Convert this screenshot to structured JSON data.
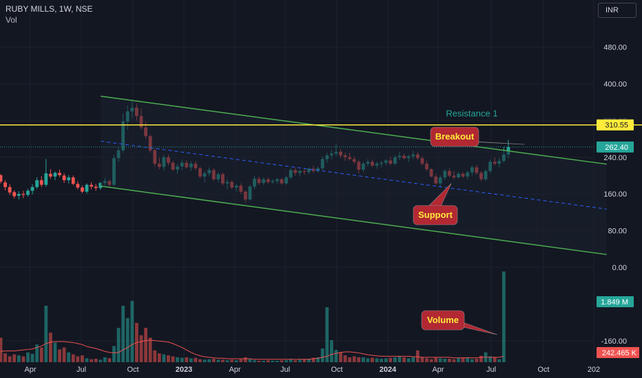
{
  "header": {
    "title": "RUBY MILLS, 1W, NSE",
    "indicator": "Vol"
  },
  "currency": "INR",
  "colors": {
    "background": "#131722",
    "up": "#26a69a",
    "down": "#ef5350",
    "channel": "#4caf50",
    "midline": "#2962ff",
    "resistance": "#ffeb3b",
    "resistance_text": "#26a69a",
    "callout": "#b22833",
    "callout_text": "#ffeb3b",
    "axis_text": "#d1d4dc",
    "vol_ma": "#ef5350"
  },
  "chart_data": [
    {
      "type": "candlestick",
      "title": "RUBY MILLS, 1W, NSE",
      "price_axis": {
        "ticks": [
          "480.00",
          "400.00",
          "320.00",
          "240.00",
          "160.00",
          "80.00",
          "0.00",
          "-160.00"
        ],
        "range": [
          -240,
          560
        ]
      },
      "time_axis": {
        "ticks": [
          "Apr",
          "Jul",
          "Oct",
          "2023",
          "Apr",
          "Jul",
          "Oct",
          "2024",
          "Apr",
          "Jul",
          "Oct",
          "202"
        ]
      },
      "last_price": {
        "label": "262.40",
        "value": 262.4
      },
      "resistance": {
        "label": "Resistance 1",
        "value": 310.55,
        "price_label": "310.55"
      },
      "channel": {
        "upper": [
          [
            0.157,
            373
          ],
          [
            0.945,
            225
          ]
        ],
        "lower": [
          [
            0.157,
            177
          ],
          [
            0.945,
            28
          ]
        ],
        "mid": [
          [
            0.157,
            275
          ],
          [
            0.945,
            127
          ]
        ]
      },
      "annotations": [
        {
          "text": "Breakout",
          "target_week": 0.817,
          "target_price": 268
        },
        {
          "text": "Support",
          "target_week": 0.703,
          "target_price": 183
        },
        {
          "text": "Volume",
          "target_week": 0.805,
          "target_price": null
        }
      ],
      "candles": [
        [
          201,
          203,
          183,
          187
        ],
        [
          185,
          190,
          168,
          175
        ],
        [
          175,
          181,
          158,
          163
        ],
        [
          164,
          168,
          150,
          155
        ],
        [
          156,
          166,
          148,
          160
        ],
        [
          160,
          167,
          151,
          158
        ],
        [
          158,
          171,
          154,
          167
        ],
        [
          167,
          181,
          159,
          175
        ],
        [
          175,
          196,
          171,
          190
        ],
        [
          190,
          199,
          175,
          180
        ],
        [
          180,
          236,
          176,
          205
        ],
        [
          204,
          214,
          193,
          198
        ],
        [
          198,
          209,
          190,
          206
        ],
        [
          206,
          213,
          197,
          201
        ],
        [
          200,
          205,
          184,
          190
        ],
        [
          190,
          201,
          183,
          196
        ],
        [
          196,
          200,
          179,
          182
        ],
        [
          182,
          188,
          170,
          174
        ],
        [
          174,
          178,
          162,
          165
        ],
        [
          165,
          183,
          161,
          180
        ],
        [
          180,
          186,
          170,
          176
        ],
        [
          176,
          182,
          167,
          173
        ],
        [
          173,
          186,
          169,
          184
        ],
        [
          184,
          195,
          178,
          188
        ],
        [
          188,
          191,
          175,
          180
        ],
        [
          180,
          245,
          176,
          238
        ],
        [
          238,
          262,
          230,
          255
        ],
        [
          255,
          335,
          250,
          318
        ],
        [
          318,
          353,
          300,
          340
        ],
        [
          340,
          362,
          325,
          348
        ],
        [
          348,
          356,
          320,
          330
        ],
        [
          330,
          346,
          300,
          305
        ],
        [
          305,
          318,
          280,
          286
        ],
        [
          286,
          290,
          250,
          255
        ],
        [
          255,
          259,
          220,
          226
        ],
        [
          226,
          240,
          214,
          219
        ],
        [
          219,
          245,
          210,
          240
        ],
        [
          240,
          246,
          222,
          228
        ],
        [
          228,
          232,
          210,
          213
        ],
        [
          213,
          226,
          204,
          220
        ],
        [
          220,
          235,
          212,
          228
        ],
        [
          228,
          234,
          215,
          218
        ],
        [
          218,
          231,
          210,
          226
        ],
        [
          226,
          232,
          212,
          216
        ],
        [
          216,
          219,
          194,
          198
        ],
        [
          198,
          210,
          186,
          205
        ],
        [
          205,
          218,
          198,
          212
        ],
        [
          212,
          216,
          188,
          192
        ],
        [
          192,
          207,
          185,
          203
        ],
        [
          203,
          206,
          178,
          183
        ],
        [
          183,
          192,
          170,
          186
        ],
        [
          186,
          190,
          170,
          174
        ],
        [
          174,
          182,
          165,
          178
        ],
        [
          178,
          183,
          160,
          165
        ],
        [
          165,
          168,
          142,
          148
        ],
        [
          148,
          180,
          145,
          176
        ],
        [
          176,
          200,
          170,
          193
        ],
        [
          193,
          198,
          180,
          184
        ],
        [
          184,
          196,
          180,
          192
        ],
        [
          192,
          196,
          182,
          186
        ],
        [
          186,
          192,
          182,
          188
        ],
        [
          188,
          195,
          182,
          192
        ],
        [
          192,
          195,
          180,
          183
        ],
        [
          183,
          200,
          180,
          196
        ],
        [
          196,
          216,
          192,
          212
        ],
        [
          212,
          218,
          200,
          206
        ],
        [
          206,
          213,
          198,
          210
        ],
        [
          210,
          214,
          202,
          208
        ],
        [
          208,
          218,
          203,
          215
        ],
        [
          215,
          222,
          205,
          210
        ],
        [
          210,
          220,
          206,
          216
        ],
        [
          216,
          242,
          212,
          236
        ],
        [
          236,
          250,
          228,
          244
        ],
        [
          244,
          256,
          236,
          248
        ],
        [
          248,
          270,
          242,
          252
        ],
        [
          252,
          258,
          238,
          244
        ],
        [
          244,
          250,
          232,
          240
        ],
        [
          240,
          250,
          233,
          236
        ],
        [
          236,
          242,
          225,
          230
        ],
        [
          230,
          235,
          205,
          213
        ],
        [
          213,
          230,
          208,
          226
        ],
        [
          226,
          236,
          220,
          230
        ],
        [
          230,
          235,
          218,
          222
        ],
        [
          222,
          230,
          215,
          226
        ],
        [
          226,
          232,
          218,
          228
        ],
        [
          228,
          236,
          222,
          233
        ],
        [
          233,
          241,
          222,
          226
        ],
        [
          226,
          244,
          222,
          240
        ],
        [
          240,
          252,
          234,
          243
        ],
        [
          243,
          248,
          235,
          238
        ],
        [
          238,
          246,
          230,
          242
        ],
        [
          242,
          254,
          236,
          246
        ],
        [
          246,
          251,
          234,
          238
        ],
        [
          238,
          242,
          222,
          226
        ],
        [
          226,
          233,
          210,
          214
        ],
        [
          214,
          216,
          196,
          198
        ],
        [
          198,
          204,
          180,
          183
        ],
        [
          183,
          200,
          176,
          196
        ],
        [
          196,
          214,
          190,
          210
        ],
        [
          210,
          216,
          196,
          200
        ],
        [
          200,
          210,
          192,
          196
        ],
        [
          196,
          208,
          194,
          204
        ],
        [
          204,
          208,
          195,
          198
        ],
        [
          198,
          211,
          192,
          207
        ],
        [
          207,
          222,
          200,
          218
        ],
        [
          218,
          224,
          202,
          206
        ],
        [
          206,
          210,
          188,
          192
        ],
        [
          192,
          214,
          188,
          210
        ],
        [
          210,
          235,
          206,
          230
        ],
        [
          230,
          240,
          222,
          226
        ],
        [
          226,
          238,
          218,
          232
        ],
        [
          232,
          262,
          228,
          246
        ],
        [
          246,
          278,
          238,
          262
        ]
      ],
      "volume": {
        "axis_label": "242.465 K",
        "last_label": "1.849 M",
        "max": 1.849,
        "values": [
          0.5,
          0.18,
          0.12,
          0.16,
          0.14,
          0.12,
          0.2,
          0.17,
          0.36,
          0.3,
          1.15,
          0.6,
          0.4,
          0.26,
          0.3,
          0.2,
          0.16,
          0.12,
          0.14,
          0.08,
          0.06,
          0.07,
          0.05,
          0.1,
          0.08,
          0.33,
          0.7,
          1.15,
          0.9,
          1.25,
          0.8,
          0.55,
          0.7,
          0.5,
          0.24,
          0.18,
          0.16,
          0.14,
          0.12,
          0.1,
          0.09,
          0.1,
          0.08,
          0.09,
          0.06,
          0.05,
          0.06,
          0.07,
          0.05,
          0.05,
          0.04,
          0.05,
          0.04,
          0.06,
          0.1,
          0.06,
          0.04,
          0.03,
          0.03,
          0.04,
          0.03,
          0.03,
          0.04,
          0.04,
          0.05,
          0.04,
          0.05,
          0.06,
          0.07,
          0.09,
          0.1,
          0.28,
          1.12,
          0.45,
          0.25,
          0.2,
          0.14,
          0.1,
          0.12,
          0.1,
          0.1,
          0.08,
          0.09,
          0.08,
          0.07,
          0.08,
          0.09,
          0.1,
          0.12,
          0.1,
          0.08,
          0.1,
          0.24,
          0.1,
          0.08,
          0.06,
          0.09,
          0.08,
          0.07,
          0.07,
          0.06,
          0.08,
          0.09,
          0.1,
          0.06,
          0.07,
          0.13,
          0.2,
          0.12,
          0.1,
          0.06,
          1.849
        ],
        "ma": [
          0.22,
          0.23,
          0.23,
          0.23,
          0.24,
          0.25,
          0.26,
          0.27,
          0.3,
          0.33,
          0.38,
          0.41,
          0.42,
          0.42,
          0.42,
          0.41,
          0.4,
          0.38,
          0.36,
          0.32,
          0.3,
          0.28,
          0.25,
          0.22,
          0.2,
          0.19,
          0.2,
          0.25,
          0.3,
          0.36,
          0.4,
          0.42,
          0.44,
          0.45,
          0.44,
          0.43,
          0.42,
          0.41,
          0.38,
          0.34,
          0.3,
          0.25,
          0.2,
          0.16,
          0.13,
          0.11,
          0.1,
          0.09,
          0.08,
          0.08,
          0.07,
          0.07,
          0.07,
          0.07,
          0.07,
          0.07,
          0.06,
          0.06,
          0.06,
          0.06,
          0.06,
          0.06,
          0.06,
          0.06,
          0.06,
          0.06,
          0.06,
          0.06,
          0.06,
          0.07,
          0.08,
          0.1,
          0.12,
          0.16,
          0.18,
          0.2,
          0.21,
          0.21,
          0.2,
          0.19,
          0.17,
          0.15,
          0.14,
          0.13,
          0.12,
          0.12,
          0.12,
          0.12,
          0.12,
          0.12,
          0.12,
          0.11,
          0.11,
          0.1,
          0.1,
          0.1,
          0.1,
          0.1,
          0.1,
          0.1,
          0.09,
          0.09,
          0.09,
          0.09,
          0.09,
          0.09,
          0.1,
          0.1,
          0.1,
          0.1,
          0.1,
          0.12
        ]
      }
    }
  ]
}
